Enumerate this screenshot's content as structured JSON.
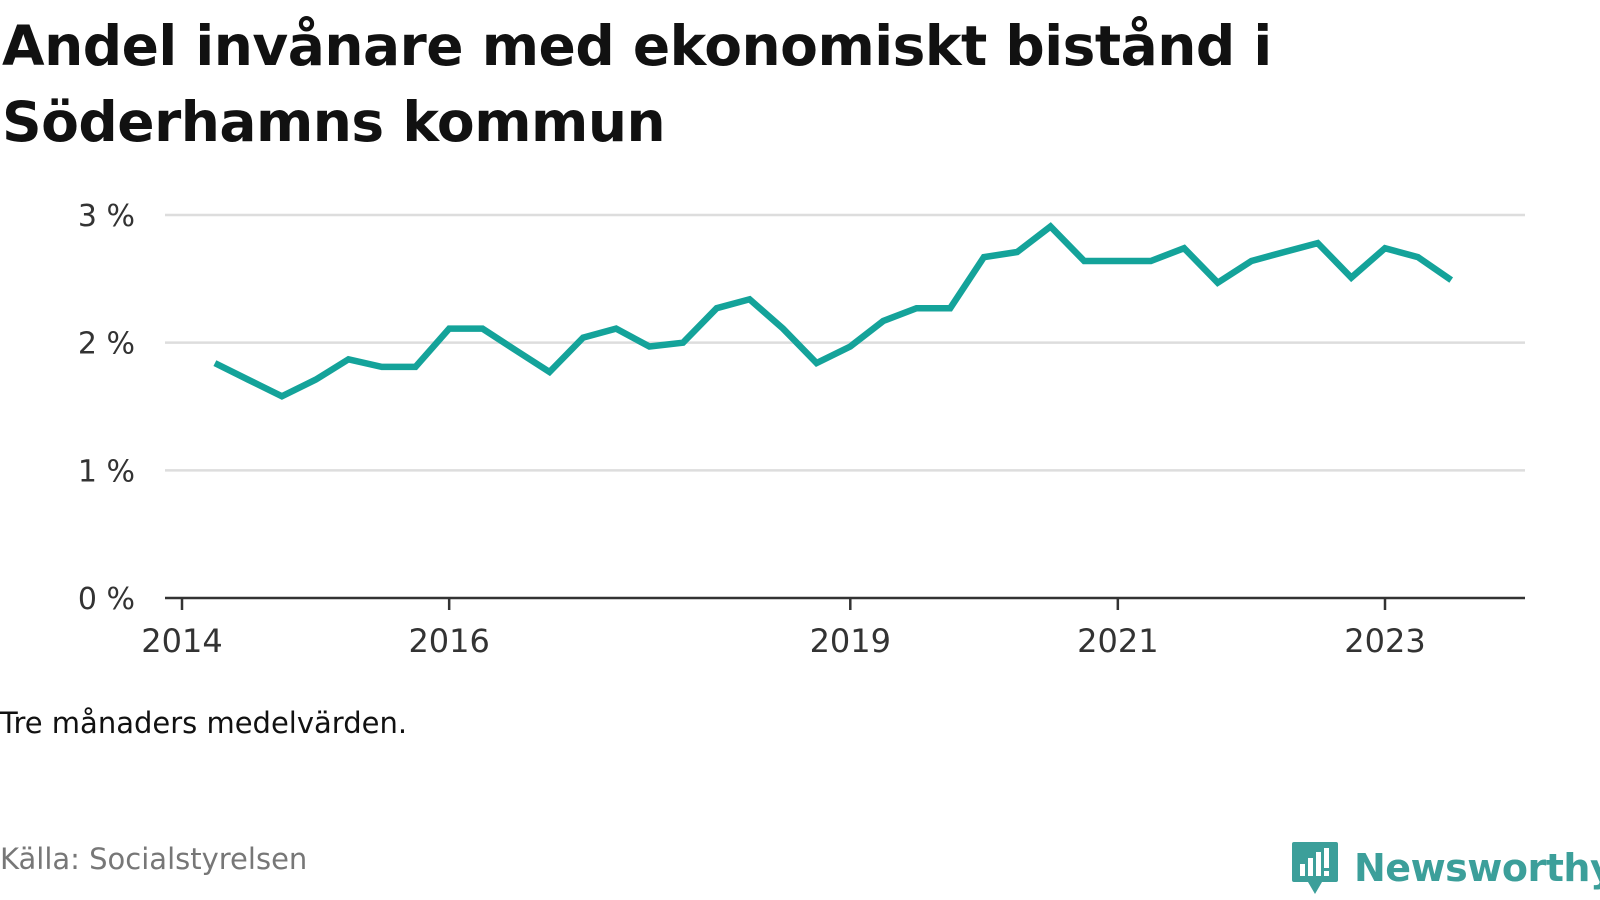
{
  "title": "Andel invånare med ekonomiskt bistånd i Söderhamns kommun",
  "note": "Tre månaders medelvärden.",
  "source": "Källa: Socialstyrelsen",
  "brand": {
    "name": "Newsworthy",
    "color": "#3c9f9a",
    "icon": "newsworthy-bar-chart-icon"
  },
  "chart_data": {
    "type": "line",
    "title": "Andel invånare med ekonomiskt bistånd i Söderhamns kommun",
    "xlabel": "",
    "ylabel": "",
    "ylim": [
      0,
      3
    ],
    "y_ticks": [
      {
        "value": 0,
        "label": "0 %"
      },
      {
        "value": 1,
        "label": "1 %"
      },
      {
        "value": 2,
        "label": "2 %"
      },
      {
        "value": 3,
        "label": "3 %"
      }
    ],
    "x_ticks": [
      {
        "value": "2014",
        "label": "2014"
      },
      {
        "value": "2016",
        "label": "2016"
      },
      {
        "value": "2019",
        "label": "2019"
      },
      {
        "value": "2021",
        "label": "2021"
      },
      {
        "value": "2023",
        "label": "2023"
      }
    ],
    "grid": true,
    "line_color": "#14a39a",
    "series": [
      {
        "values": [
          {
            "x": "2014-04",
            "y": 1.84
          },
          {
            "x": "2014-07",
            "y": 1.71
          },
          {
            "x": "2014-10",
            "y": 1.58
          },
          {
            "x": "2015-01",
            "y": 1.71
          },
          {
            "x": "2015-04",
            "y": 1.87
          },
          {
            "x": "2015-07",
            "y": 1.81
          },
          {
            "x": "2015-10",
            "y": 1.81
          },
          {
            "x": "2016-01",
            "y": 2.11
          },
          {
            "x": "2016-04",
            "y": 2.11
          },
          {
            "x": "2016-07",
            "y": 1.94
          },
          {
            "x": "2016-10",
            "y": 1.77
          },
          {
            "x": "2017-01",
            "y": 2.04
          },
          {
            "x": "2017-04",
            "y": 2.11
          },
          {
            "x": "2017-07",
            "y": 1.97
          },
          {
            "x": "2017-10",
            "y": 2.0
          },
          {
            "x": "2018-01",
            "y": 2.27
          },
          {
            "x": "2018-04",
            "y": 2.34
          },
          {
            "x": "2018-07",
            "y": 2.11
          },
          {
            "x": "2018-10",
            "y": 1.84
          },
          {
            "x": "2019-01",
            "y": 1.97
          },
          {
            "x": "2019-04",
            "y": 2.17
          },
          {
            "x": "2019-07",
            "y": 2.27
          },
          {
            "x": "2019-10",
            "y": 2.27
          },
          {
            "x": "2020-01",
            "y": 2.67
          },
          {
            "x": "2020-04",
            "y": 2.71
          },
          {
            "x": "2020-07",
            "y": 2.91
          },
          {
            "x": "2020-10",
            "y": 2.64
          },
          {
            "x": "2021-01",
            "y": 2.64
          },
          {
            "x": "2021-04",
            "y": 2.64
          },
          {
            "x": "2021-07",
            "y": 2.74
          },
          {
            "x": "2021-10",
            "y": 2.47
          },
          {
            "x": "2022-01",
            "y": 2.64
          },
          {
            "x": "2022-04",
            "y": 2.71
          },
          {
            "x": "2022-07",
            "y": 2.78
          },
          {
            "x": "2022-10",
            "y": 2.51
          },
          {
            "x": "2023-01",
            "y": 2.74
          },
          {
            "x": "2023-04",
            "y": 2.67
          },
          {
            "x": "2023-07",
            "y": 2.49
          }
        ]
      }
    ]
  }
}
